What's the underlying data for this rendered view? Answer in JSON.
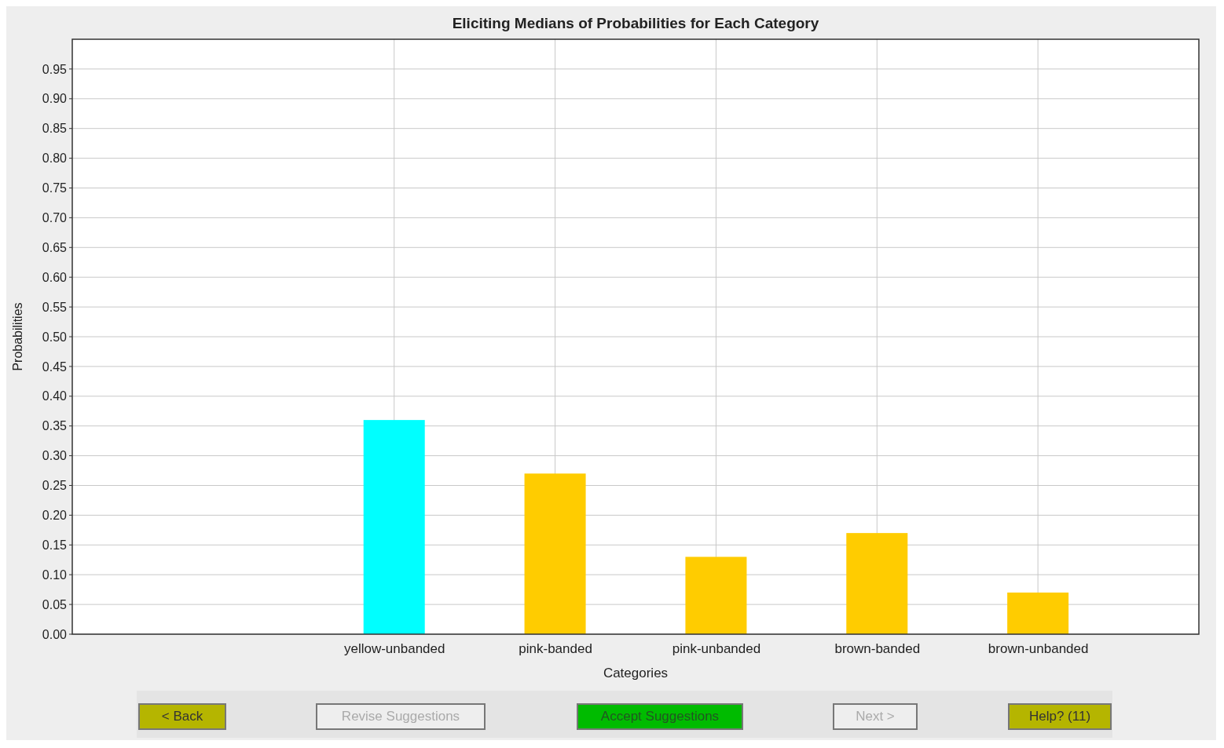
{
  "chart_data": {
    "type": "bar",
    "title": "Eliciting Medians of Probabilities for Each Category",
    "xlabel": "Categories",
    "ylabel": "Probabilities",
    "categories": [
      null,
      null,
      "yellow-unbanded",
      "pink-banded",
      "pink-unbanded",
      "brown-banded",
      "brown-unbanded",
      null
    ],
    "values": [
      null,
      null,
      0.36,
      0.27,
      0.13,
      0.17,
      0.07,
      null
    ],
    "colors": [
      null,
      null,
      "#00ffff",
      "#ffcc00",
      "#ffcc00",
      "#ffcc00",
      "#ffcc00",
      null
    ],
    "ylim": [
      0,
      1
    ],
    "yticks": [
      {
        "value": 0,
        "label": "0.00"
      },
      {
        "value": 0.05,
        "label": "0.05"
      },
      {
        "value": 0.1,
        "label": "0.10"
      },
      {
        "value": 0.15,
        "label": "0.15"
      },
      {
        "value": 0.2,
        "label": "0.20"
      },
      {
        "value": 0.25,
        "label": "0.25"
      },
      {
        "value": 0.3,
        "label": "0.30"
      },
      {
        "value": 0.35,
        "label": "0.35"
      },
      {
        "value": 0.4,
        "label": "0.40"
      },
      {
        "value": 0.45,
        "label": "0.45"
      },
      {
        "value": 0.5,
        "label": "0.50"
      },
      {
        "value": 0.55,
        "label": "0.55"
      },
      {
        "value": 0.6,
        "label": "0.60"
      },
      {
        "value": 0.65,
        "label": "0.65"
      },
      {
        "value": 0.7,
        "label": "0.70"
      },
      {
        "value": 0.75,
        "label": "0.75"
      },
      {
        "value": 0.8,
        "label": "0.80"
      },
      {
        "value": 0.85,
        "label": "0.85"
      },
      {
        "value": 0.9,
        "label": "0.90"
      },
      {
        "value": 0.95,
        "label": "0.95"
      }
    ],
    "grid": true,
    "annotations": [
      "< Back",
      "Revise Suggestions",
      "Accept Suggestions",
      "Next >",
      "Help? (11)"
    ]
  }
}
